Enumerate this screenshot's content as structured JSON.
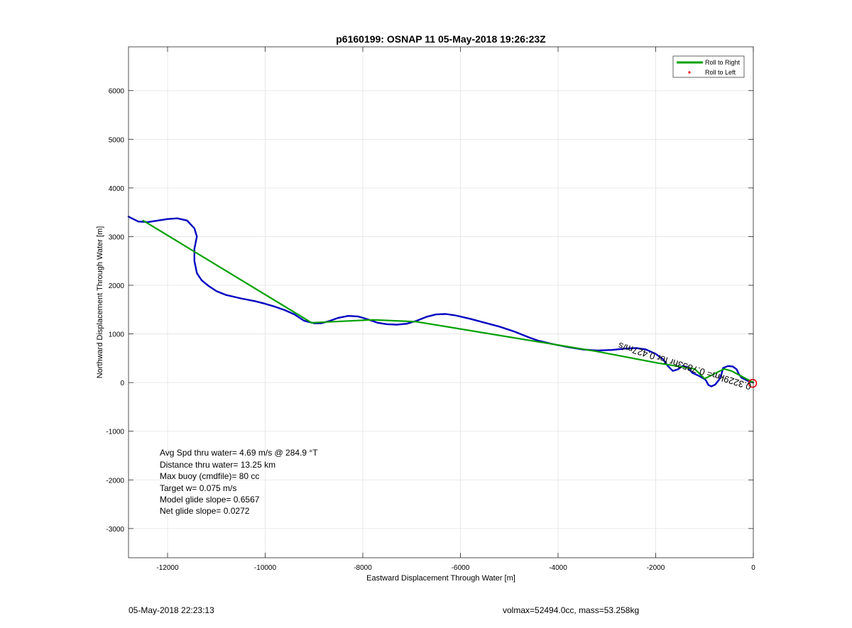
{
  "chart_data": {
    "type": "line",
    "title": "p6160199: OSNAP 11 05-May-2018 19:26:23Z",
    "xlabel": "Eastward Displacement Through Water [m]",
    "ylabel": "Northward Displacement Through Water [m]",
    "xlim": [
      -12800,
      0
    ],
    "ylim": [
      -3600,
      6900
    ],
    "xticks": [
      -12000,
      -10000,
      -8000,
      -6000,
      -4000,
      -2000,
      0
    ],
    "yticks": [
      -3000,
      -2000,
      -1000,
      0,
      1000,
      2000,
      3000,
      4000,
      5000,
      6000
    ],
    "grid": true,
    "legend_placement": "top-right",
    "legend": [
      {
        "label": "Roll to Right",
        "color": "#00a000",
        "style": "line"
      },
      {
        "label": "Roll to Left",
        "color": "#ff0000",
        "style": "dot"
      }
    ],
    "series": [
      {
        "color": "#0000c0",
        "points": [
          [
            -12800,
            3410
          ],
          [
            -12600,
            3310
          ],
          [
            -12400,
            3300
          ],
          [
            -12200,
            3330
          ],
          [
            -12000,
            3360
          ],
          [
            -11800,
            3375
          ],
          [
            -11600,
            3330
          ],
          [
            -11450,
            3170
          ],
          [
            -11400,
            3000
          ],
          [
            -11450,
            2750
          ],
          [
            -11450,
            2500
          ],
          [
            -11400,
            2250
          ],
          [
            -11300,
            2100
          ],
          [
            -11150,
            1980
          ],
          [
            -11000,
            1880
          ],
          [
            -10800,
            1800
          ],
          [
            -10500,
            1730
          ],
          [
            -10200,
            1670
          ],
          [
            -10000,
            1620
          ],
          [
            -9800,
            1560
          ],
          [
            -9600,
            1490
          ],
          [
            -9400,
            1400
          ],
          [
            -9200,
            1270
          ],
          [
            -9000,
            1220
          ],
          [
            -8850,
            1220
          ],
          [
            -8700,
            1260
          ],
          [
            -8500,
            1330
          ],
          [
            -8300,
            1370
          ],
          [
            -8100,
            1360
          ],
          [
            -7900,
            1300
          ],
          [
            -7700,
            1230
          ],
          [
            -7500,
            1200
          ],
          [
            -7300,
            1190
          ],
          [
            -7100,
            1210
          ],
          [
            -6900,
            1270
          ],
          [
            -6700,
            1350
          ],
          [
            -6500,
            1400
          ],
          [
            -6300,
            1410
          ],
          [
            -6100,
            1380
          ],
          [
            -5800,
            1310
          ],
          [
            -5500,
            1230
          ],
          [
            -5200,
            1150
          ],
          [
            -4900,
            1050
          ],
          [
            -4600,
            930
          ],
          [
            -4400,
            860
          ],
          [
            -4100,
            790
          ],
          [
            -3800,
            730
          ],
          [
            -3500,
            680
          ],
          [
            -3200,
            660
          ],
          [
            -2900,
            670
          ],
          [
            -2600,
            700
          ],
          [
            -2400,
            710
          ],
          [
            -2200,
            680
          ],
          [
            -2000,
            590
          ],
          [
            -1850,
            480
          ],
          [
            -1750,
            340
          ],
          [
            -1650,
            240
          ],
          [
            -1550,
            270
          ],
          [
            -1450,
            340
          ],
          [
            -1350,
            320
          ],
          [
            -1250,
            200
          ],
          [
            -1100,
            130
          ],
          [
            -980,
            60
          ],
          [
            -920,
            -50
          ],
          [
            -860,
            -80
          ],
          [
            -780,
            -40
          ],
          [
            -700,
            60
          ],
          [
            -650,
            180
          ],
          [
            -620,
            300
          ],
          [
            -520,
            340
          ],
          [
            -420,
            330
          ],
          [
            -340,
            270
          ],
          [
            -300,
            180
          ],
          [
            -240,
            100
          ],
          [
            -160,
            60
          ],
          [
            -80,
            20
          ],
          [
            0,
            0
          ]
        ]
      },
      {
        "name": "Roll to Right",
        "color": "#00a000",
        "points": [
          [
            -12500,
            3330
          ],
          [
            -9050,
            1230
          ],
          [
            -7800,
            1290
          ],
          [
            -6900,
            1250
          ],
          [
            -3200,
            640
          ],
          [
            -1950,
            400
          ],
          [
            -1200,
            280
          ],
          [
            -1000,
            80
          ],
          [
            -600,
            280
          ],
          [
            -450,
            240
          ],
          [
            0,
            0
          ]
        ]
      }
    ],
    "markers": [
      {
        "label": "start",
        "x": 0,
        "y": 0,
        "color": "#ff0000",
        "shape": "circle"
      }
    ],
    "annotations": [
      {
        "text": "0.3229km= 0.7853hr for 0.427m/s",
        "x": 0,
        "y": 0,
        "rotation_deg": 197.5
      }
    ],
    "stats": [
      "Avg Spd thru water=  4.69 m/s @ 284.9 °T",
      "Distance thru water= 13.25 km",
      "Max buoy (cmdfile)= 80 cc",
      "Target w= 0.075 m/s",
      "Model glide slope= 0.6567",
      "Net glide slope= 0.0272"
    ]
  },
  "footer": {
    "left": "05-May-2018 22:23:13",
    "right": "volmax=52494.0cc, mass=53.258kg"
  }
}
